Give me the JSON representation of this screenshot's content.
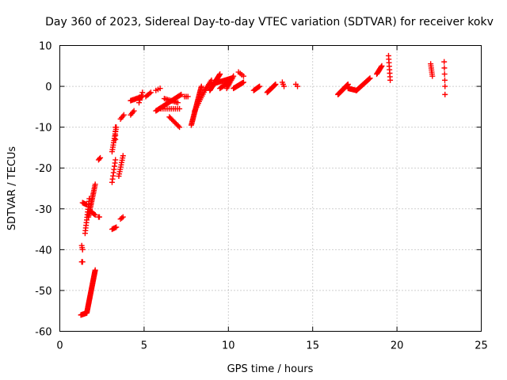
{
  "chart_data": {
    "type": "scatter",
    "title": "Day 360 of 2023, Sidereal Day-to-day VTEC variation (SDTVAR) for receiver kokv",
    "xlabel": "GPS time / hours",
    "ylabel": "SDTVAR / TECUs",
    "xlim": [
      0,
      25
    ],
    "ylim": [
      -60,
      10
    ],
    "xticks": [
      0,
      5,
      10,
      15,
      20,
      25
    ],
    "yticks": [
      -60,
      -50,
      -40,
      -30,
      -20,
      -10,
      0,
      10
    ],
    "grid": true,
    "marker": "+",
    "color": "#ff0000",
    "segments": [
      [
        1.25,
        -56.0,
        1.6,
        -55.5,
        10
      ],
      [
        1.6,
        -55.5,
        2.1,
        -45.0,
        46
      ],
      [
        1.3,
        -43.0,
        1.35,
        -43.0,
        3
      ],
      [
        1.3,
        -39.0,
        1.35,
        -40.0,
        3
      ],
      [
        1.35,
        -28.5,
        1.6,
        -29.0,
        6
      ],
      [
        1.5,
        -36.0,
        1.75,
        -27.5,
        14
      ],
      [
        1.7,
        -32.0,
        2.1,
        -24.0,
        22
      ],
      [
        1.8,
        -30.5,
        2.1,
        -31.5,
        6
      ],
      [
        2.3,
        -32.0,
        2.35,
        -32.0,
        2
      ],
      [
        2.3,
        -18.0,
        2.4,
        -17.5,
        3
      ],
      [
        3.1,
        -35.0,
        3.35,
        -34.5,
        5
      ],
      [
        3.1,
        -23.5,
        3.3,
        -18.0,
        8
      ],
      [
        3.1,
        -16.0,
        3.35,
        -10.0,
        12
      ],
      [
        3.3,
        -13.0,
        3.3,
        -10.0,
        4
      ],
      [
        3.5,
        -22.0,
        3.75,
        -17.0,
        10
      ],
      [
        3.6,
        -32.5,
        3.75,
        -32.0,
        3
      ],
      [
        3.6,
        -8.0,
        3.8,
        -7.0,
        4
      ],
      [
        4.2,
        -7.0,
        4.4,
        -6.0,
        4
      ],
      [
        4.2,
        -3.5,
        4.9,
        -2.5,
        12
      ],
      [
        4.7,
        -4.0,
        4.9,
        -1.5,
        5
      ],
      [
        5.1,
        -2.5,
        5.4,
        -1.5,
        5
      ],
      [
        5.7,
        -1.0,
        5.95,
        -0.5,
        3
      ],
      [
        5.7,
        -6.0,
        7.2,
        -2.0,
        26
      ],
      [
        6.0,
        -5.5,
        7.1,
        -5.5,
        10
      ],
      [
        6.2,
        -3.0,
        7.0,
        -4.0,
        10
      ],
      [
        6.5,
        -7.5,
        7.1,
        -10.0,
        10
      ],
      [
        7.4,
        -2.5,
        7.6,
        -2.5,
        3
      ],
      [
        7.8,
        -9.5,
        8.4,
        0.0,
        34
      ],
      [
        8.0,
        -6.0,
        8.6,
        -1.0,
        12
      ],
      [
        8.6,
        -1.0,
        9.0,
        1.5,
        8
      ],
      [
        8.9,
        -1.0,
        9.5,
        3.0,
        22
      ],
      [
        9.0,
        0.5,
        10.2,
        2.0,
        22
      ],
      [
        9.5,
        -0.5,
        10.0,
        1.0,
        10
      ],
      [
        9.9,
        -0.5,
        10.3,
        2.5,
        10
      ],
      [
        10.3,
        -0.5,
        10.9,
        1.0,
        14
      ],
      [
        10.6,
        3.5,
        10.9,
        2.5,
        4
      ],
      [
        11.5,
        -1.0,
        11.85,
        0.0,
        8
      ],
      [
        12.3,
        -1.5,
        12.8,
        0.5,
        16
      ],
      [
        13.2,
        1.0,
        13.3,
        0.0,
        3
      ],
      [
        14.0,
        0.5,
        14.1,
        0.0,
        2
      ],
      [
        16.5,
        -2.0,
        17.1,
        0.5,
        26
      ],
      [
        17.1,
        -0.5,
        17.6,
        -1.0,
        10
      ],
      [
        17.6,
        -1.0,
        18.4,
        2.0,
        20
      ],
      [
        18.8,
        3.0,
        19.1,
        5.0,
        10
      ],
      [
        19.5,
        7.5,
        19.6,
        1.5,
        8
      ],
      [
        22.0,
        5.5,
        22.1,
        2.5,
        7
      ],
      [
        22.8,
        6.0,
        22.85,
        0.0,
        5
      ],
      [
        22.85,
        -2.0,
        22.85,
        -2.0,
        1
      ]
    ]
  }
}
